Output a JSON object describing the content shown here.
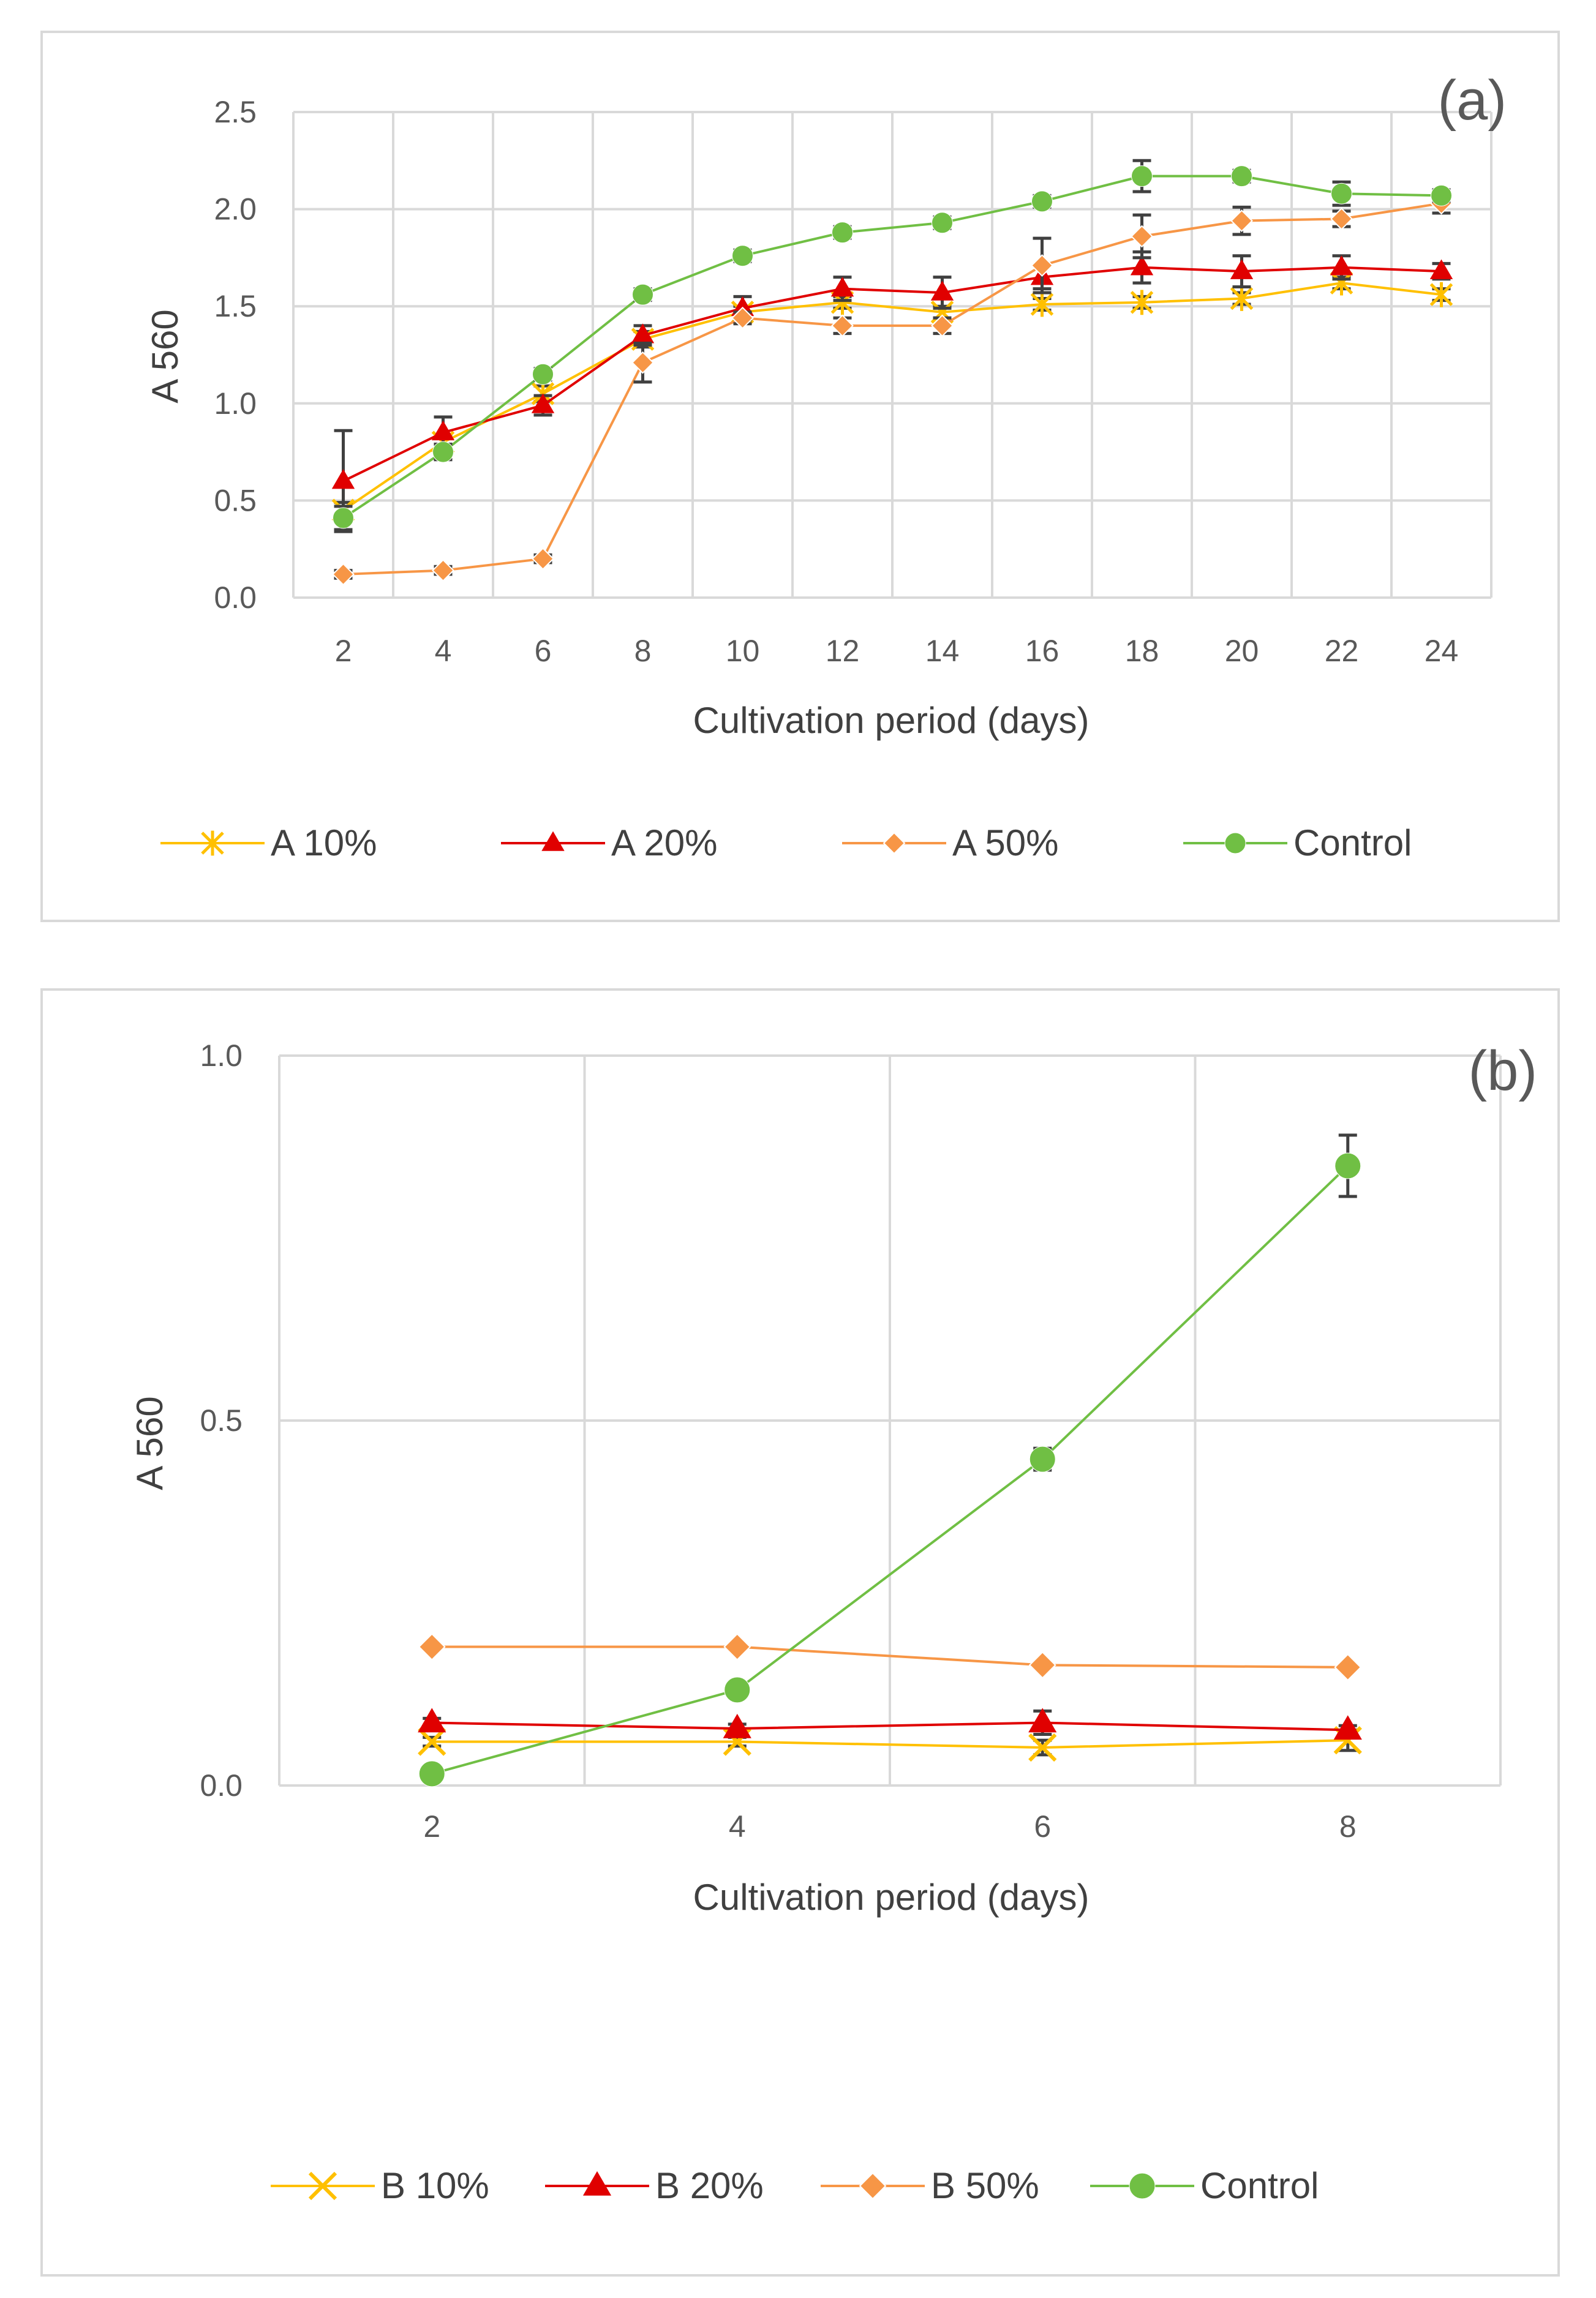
{
  "chart_data": [
    {
      "type": "line",
      "panel_label": "(a)",
      "title": "",
      "xlabel": "Cultivation period (days)",
      "ylabel": "A 560",
      "x": [
        2,
        4,
        6,
        8,
        10,
        12,
        14,
        16,
        18,
        20,
        22,
        24
      ],
      "ylim": [
        0,
        2.5
      ],
      "yticks": [
        "0.0",
        "0.5",
        "1.0",
        "1.5",
        "2.0",
        "2.5"
      ],
      "grid": true,
      "legend_position": "bottom",
      "series": [
        {
          "name": "A  10%",
          "color": "#FFC000",
          "marker": "star",
          "values": [
            0.45,
            0.8,
            1.05,
            1.33,
            1.47,
            1.52,
            1.47,
            1.51,
            1.52,
            1.54,
            1.62,
            1.56
          ],
          "errors": [
            0.04,
            0.04,
            0.04,
            0.04,
            0.03,
            0.03,
            0.03,
            0.03,
            0.03,
            0.03,
            0.03,
            0.03
          ]
        },
        {
          "name": "A  20%",
          "color": "#E00000",
          "marker": "triangle",
          "values": [
            0.6,
            0.85,
            0.99,
            1.35,
            1.49,
            1.59,
            1.57,
            1.65,
            1.7,
            1.68,
            1.7,
            1.68
          ],
          "errors": [
            0.26,
            0.08,
            0.05,
            0.05,
            0.06,
            0.06,
            0.08,
            0.06,
            0.08,
            0.08,
            0.06,
            0.04
          ]
        },
        {
          "name": "A  50%",
          "color": "#F79646",
          "marker": "diamond",
          "values": [
            0.12,
            0.14,
            0.2,
            1.21,
            1.44,
            1.4,
            1.4,
            1.71,
            1.86,
            1.94,
            1.95,
            2.03
          ],
          "errors": [
            0.02,
            0.02,
            0.02,
            0.1,
            0.03,
            0.04,
            0.04,
            0.14,
            0.11,
            0.07,
            0.04,
            0.05
          ]
        },
        {
          "name": "Control",
          "color": "#70BF44",
          "marker": "circle",
          "values": [
            0.41,
            0.75,
            1.15,
            1.56,
            1.76,
            1.88,
            1.93,
            2.04,
            2.17,
            2.17,
            2.08,
            2.07
          ],
          "errors": [
            0.06,
            0.04,
            0.03,
            0.03,
            0.03,
            0.03,
            0.03,
            0.03,
            0.08,
            0.03,
            0.06,
            0.03
          ]
        }
      ]
    },
    {
      "type": "line",
      "panel_label": "(b)",
      "title": "",
      "xlabel": "Cultivation period (days)",
      "ylabel": "A 560",
      "x": [
        2,
        4,
        6,
        8
      ],
      "ylim": [
        0,
        1.0
      ],
      "yticks": [
        "0.0",
        "0.5",
        "1.0"
      ],
      "grid": true,
      "legend_position": "bottom",
      "series": [
        {
          "name": "B 10%",
          "color": "#FFC000",
          "marker": "x",
          "values": [
            0.06,
            0.06,
            0.052,
            0.062
          ],
          "errors": [
            0.006,
            0.006,
            0.01,
            0.014
          ]
        },
        {
          "name": "B 20%",
          "color": "#E00000",
          "marker": "triangle",
          "values": [
            0.086,
            0.078,
            0.086,
            0.076
          ],
          "errors": [
            0.006,
            0.006,
            0.016,
            0.006
          ]
        },
        {
          "name": "B 50%",
          "color": "#F79646",
          "marker": "diamond",
          "values": [
            0.19,
            0.19,
            0.165,
            0.162
          ],
          "errors": [
            0.004,
            0.004,
            0.004,
            0.004
          ]
        },
        {
          "name": "Control",
          "color": "#70BF44",
          "marker": "circle",
          "values": [
            0.016,
            0.131,
            0.447,
            0.849
          ],
          "errors": [
            0.004,
            0.006,
            0.015,
            0.042
          ]
        }
      ]
    }
  ]
}
